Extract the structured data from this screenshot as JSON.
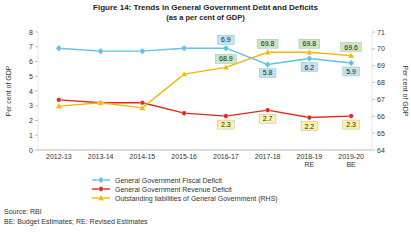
{
  "chart_data": {
    "type": "line",
    "title": "Figure 14: Trends in General Government Debt and Deficits",
    "subtitle": "(as a per cent of GDP)",
    "y_label": "Per cent of GDP",
    "y2_label": "Per cent of GDP",
    "categories": [
      "2012-13",
      "2013-14",
      "2014-15",
      "2015-16",
      "2016-17",
      "2017-18",
      "2018-19 RE",
      "2019-20 BE"
    ],
    "ylim": [
      0,
      8
    ],
    "yticks": [
      0,
      1,
      2,
      3,
      4,
      5,
      6,
      7,
      8
    ],
    "y2lim": [
      64,
      71
    ],
    "y2ticks": [
      64,
      65,
      66,
      67,
      68,
      69,
      70,
      71
    ],
    "grid": false,
    "legend": "bottom",
    "data_labels": true,
    "series": [
      {
        "name": "General Government Fiscal Deficit",
        "color": "#5bc3e3",
        "marker": "diamond",
        "values": [
          6.9,
          6.7,
          6.7,
          6.9,
          6.9,
          5.8,
          6.2,
          5.9
        ],
        "value_labels": [
          null,
          null,
          null,
          null,
          "6.9",
          "5.8",
          "6.2",
          "5.9"
        ]
      },
      {
        "name": "General Government Revenue Deficit",
        "color": "#e3261c",
        "marker": "circle",
        "values": [
          3.4,
          3.2,
          3.2,
          2.5,
          2.3,
          2.7,
          2.2,
          2.3
        ],
        "value_labels": [
          null,
          null,
          null,
          null,
          "2.3",
          "2.7",
          "2.2",
          "2.3"
        ]
      },
      {
        "name": "Outstanding liabilities of General Government (RHS)",
        "color": "#f2b705",
        "marker": "triangle",
        "axis": "y2",
        "values": [
          66.6,
          66.8,
          66.5,
          68.5,
          68.9,
          69.8,
          69.8,
          69.6
        ],
        "value_labels": [
          null,
          null,
          null,
          null,
          "68.9",
          "69.8",
          "69.8",
          "69.6"
        ]
      }
    ],
    "source": "Source: RBI",
    "footnote": "BE: Budget Estimates; RE: Revised Estimates"
  }
}
